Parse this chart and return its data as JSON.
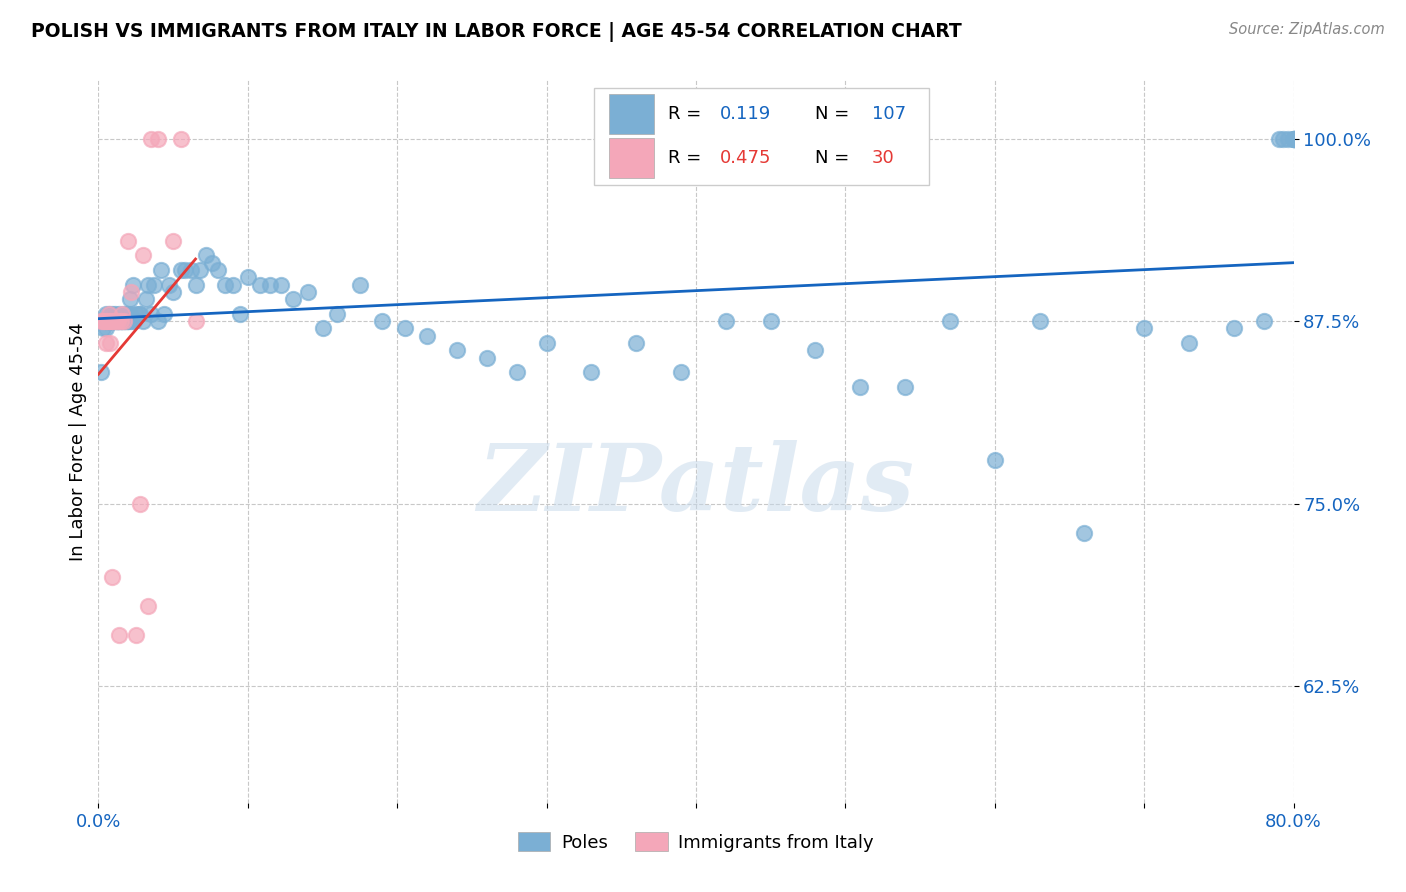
{
  "title": "POLISH VS IMMIGRANTS FROM ITALY IN LABOR FORCE | AGE 45-54 CORRELATION CHART",
  "source": "Source: ZipAtlas.com",
  "ylabel": "In Labor Force | Age 45-54",
  "xlim": [
    0.0,
    0.8
  ],
  "ylim": [
    0.545,
    1.04
  ],
  "xticks": [
    0.0,
    0.1,
    0.2,
    0.3,
    0.4,
    0.5,
    0.6,
    0.7,
    0.8
  ],
  "xticklabels": [
    "0.0%",
    "",
    "",
    "",
    "",
    "",
    "",
    "",
    "80.0%"
  ],
  "ytick_positions": [
    0.625,
    0.75,
    0.875,
    1.0
  ],
  "ytick_labels": [
    "62.5%",
    "75.0%",
    "87.5%",
    "100.0%"
  ],
  "poles_color": "#7BAFD4",
  "italy_color": "#F4A7B9",
  "trend_poles_color": "#1565C0",
  "trend_italy_color": "#E53935",
  "poles_R": 0.119,
  "poles_N": 107,
  "italy_R": 0.475,
  "italy_N": 30,
  "legend_label_poles": "Poles",
  "legend_label_italy": "Immigrants from Italy",
  "poles_x": [
    0.002,
    0.003,
    0.004,
    0.005,
    0.005,
    0.006,
    0.006,
    0.007,
    0.007,
    0.008,
    0.008,
    0.009,
    0.009,
    0.009,
    0.01,
    0.01,
    0.01,
    0.011,
    0.011,
    0.012,
    0.012,
    0.013,
    0.013,
    0.013,
    0.014,
    0.014,
    0.015,
    0.015,
    0.016,
    0.016,
    0.017,
    0.017,
    0.018,
    0.018,
    0.019,
    0.019,
    0.02,
    0.02,
    0.021,
    0.021,
    0.022,
    0.023,
    0.024,
    0.025,
    0.027,
    0.028,
    0.03,
    0.032,
    0.033,
    0.035,
    0.037,
    0.04,
    0.042,
    0.044,
    0.047,
    0.05,
    0.055,
    0.058,
    0.062,
    0.065,
    0.068,
    0.072,
    0.076,
    0.08,
    0.085,
    0.09,
    0.095,
    0.1,
    0.108,
    0.115,
    0.122,
    0.13,
    0.14,
    0.15,
    0.16,
    0.175,
    0.19,
    0.205,
    0.22,
    0.24,
    0.26,
    0.28,
    0.3,
    0.33,
    0.36,
    0.39,
    0.42,
    0.45,
    0.48,
    0.51,
    0.54,
    0.57,
    0.6,
    0.63,
    0.66,
    0.7,
    0.73,
    0.76,
    0.78,
    0.79,
    0.793,
    0.796,
    0.8,
    0.8,
    0.8,
    0.8,
    0.8
  ],
  "poles_y": [
    0.84,
    0.87,
    0.875,
    0.88,
    0.87,
    0.875,
    0.875,
    0.875,
    0.88,
    0.875,
    0.875,
    0.875,
    0.875,
    0.88,
    0.875,
    0.875,
    0.875,
    0.875,
    0.88,
    0.875,
    0.875,
    0.875,
    0.875,
    0.875,
    0.88,
    0.875,
    0.875,
    0.875,
    0.875,
    0.875,
    0.88,
    0.875,
    0.875,
    0.875,
    0.875,
    0.88,
    0.875,
    0.875,
    0.88,
    0.89,
    0.875,
    0.9,
    0.875,
    0.88,
    0.88,
    0.88,
    0.875,
    0.89,
    0.9,
    0.88,
    0.9,
    0.875,
    0.91,
    0.88,
    0.9,
    0.895,
    0.91,
    0.91,
    0.91,
    0.9,
    0.91,
    0.92,
    0.915,
    0.91,
    0.9,
    0.9,
    0.88,
    0.905,
    0.9,
    0.9,
    0.9,
    0.89,
    0.895,
    0.87,
    0.88,
    0.9,
    0.875,
    0.87,
    0.865,
    0.855,
    0.85,
    0.84,
    0.86,
    0.84,
    0.86,
    0.84,
    0.875,
    0.875,
    0.855,
    0.83,
    0.83,
    0.875,
    0.78,
    0.875,
    0.73,
    0.87,
    0.86,
    0.87,
    0.875,
    1.0,
    1.0,
    1.0,
    1.0,
    1.0,
    1.0,
    1.0,
    1.0
  ],
  "italy_x": [
    0.002,
    0.003,
    0.004,
    0.005,
    0.005,
    0.006,
    0.007,
    0.007,
    0.008,
    0.008,
    0.009,
    0.009,
    0.01,
    0.012,
    0.013,
    0.014,
    0.015,
    0.016,
    0.017,
    0.02,
    0.022,
    0.025,
    0.028,
    0.03,
    0.033,
    0.035,
    0.04,
    0.05,
    0.055,
    0.065
  ],
  "italy_y": [
    0.875,
    0.875,
    0.875,
    0.86,
    0.875,
    0.875,
    0.875,
    0.88,
    0.86,
    0.875,
    0.7,
    0.875,
    0.875,
    0.875,
    0.875,
    0.66,
    0.875,
    0.88,
    0.875,
    0.93,
    0.895,
    0.66,
    0.75,
    0.92,
    0.68,
    1.0,
    1.0,
    0.93,
    1.0,
    0.875
  ],
  "watermark": "ZIPatlas",
  "background_color": "#ffffff",
  "grid_color": "#c8c8c8"
}
